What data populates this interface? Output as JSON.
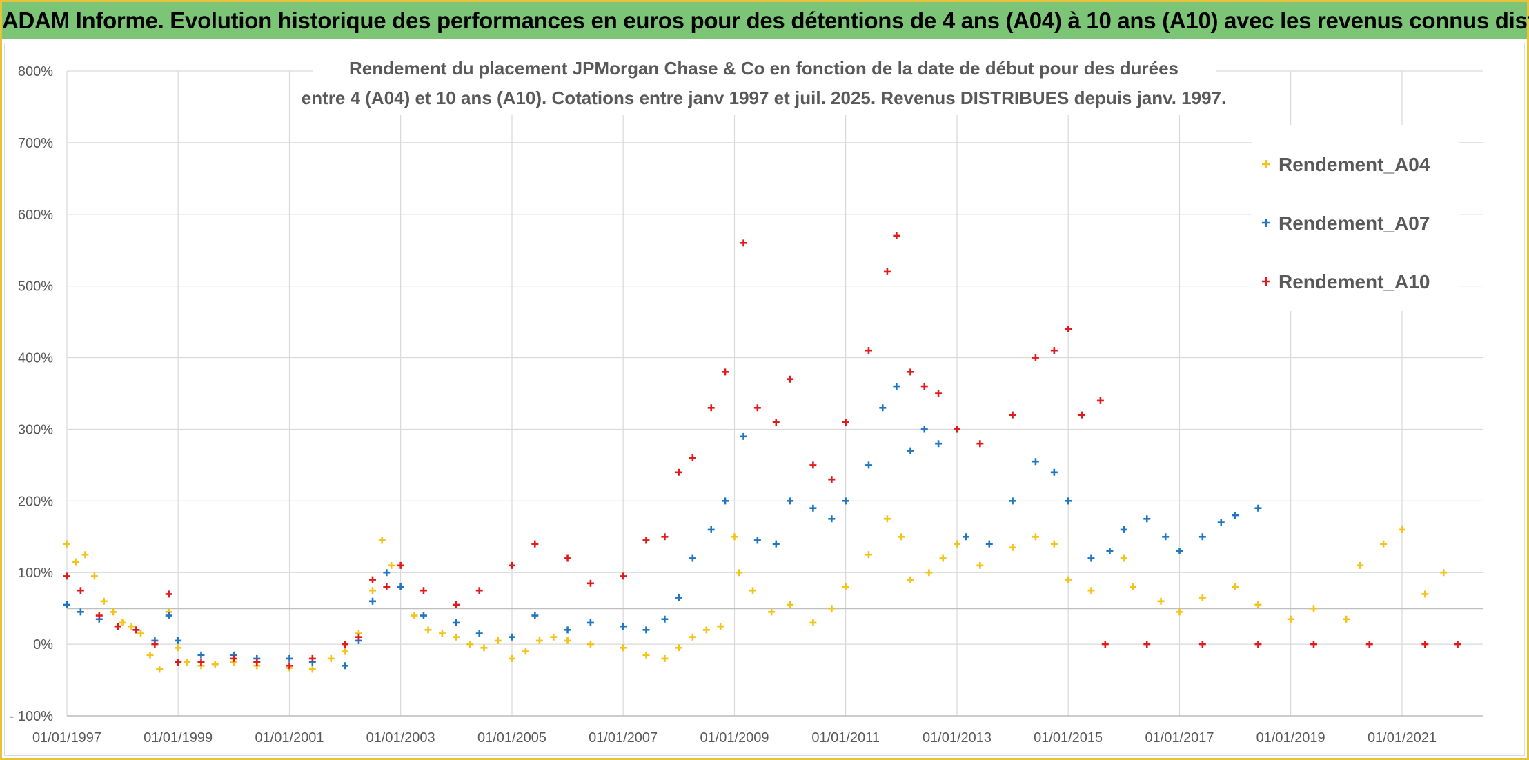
{
  "header": {
    "title": "ADAM Informe. Evolution historique des performances en euros pour des détentions de 4 ans (A04) à 10 ans (A10) avec les revenus connus distribués"
  },
  "chart_data": {
    "type": "scatter",
    "title_line1": "Rendement du placement JPMorgan Chase & Co en fonction de la date de début pour des durées",
    "title_line2": "entre 4 (A04) et 10 ans (A10). Cotations entre janv 1997 et juil. 2025. Revenus DISTRIBUES depuis janv. 1997.",
    "xlabel": "",
    "ylabel": "",
    "xlim": [
      "1997-01-01",
      "2022-06-15"
    ],
    "ylim": [
      -100,
      800
    ],
    "grid": true,
    "legend_position": "top-right",
    "x_tick_labels": [
      "01/01/1997",
      "01/01/1999",
      "01/01/2001",
      "01/01/2003",
      "01/01/2005",
      "01/01/2007",
      "01/01/2009",
      "01/01/2011",
      "01/01/2013",
      "01/01/2015",
      "01/01/2017",
      "01/01/2019",
      "01/01/2021"
    ],
    "y_tick_values": [
      -100,
      0,
      100,
      200,
      300,
      400,
      500,
      600,
      700,
      800
    ],
    "y_tick_labels": [
      "- 100%",
      "0%",
      "100%",
      "200%",
      "300%",
      "400%",
      "500%",
      "600%",
      "700%",
      "800%"
    ],
    "reference_line": 50,
    "series": [
      {
        "name": "Rendement_A04",
        "color": "#f5c218",
        "points": [
          [
            "1997-01-01",
            140
          ],
          [
            "1997-03-01",
            115
          ],
          [
            "1997-05-01",
            125
          ],
          [
            "1997-07-01",
            95
          ],
          [
            "1997-09-01",
            60
          ],
          [
            "1997-11-01",
            45
          ],
          [
            "1998-01-01",
            30
          ],
          [
            "1998-03-01",
            25
          ],
          [
            "1998-05-01",
            15
          ],
          [
            "1998-07-01",
            -15
          ],
          [
            "1998-09-01",
            -35
          ],
          [
            "1998-11-01",
            45
          ],
          [
            "1999-01-01",
            -5
          ],
          [
            "1999-03-01",
            -25
          ],
          [
            "1999-06-01",
            -30
          ],
          [
            "1999-09-01",
            -28
          ],
          [
            "2000-01-01",
            -25
          ],
          [
            "2000-06-01",
            -30
          ],
          [
            "2001-01-01",
            -33
          ],
          [
            "2001-06-01",
            -35
          ],
          [
            "2001-10-01",
            -20
          ],
          [
            "2002-01-01",
            -10
          ],
          [
            "2002-04-01",
            15
          ],
          [
            "2002-07-01",
            75
          ],
          [
            "2002-09-01",
            145
          ],
          [
            "2002-11-01",
            110
          ],
          [
            "2003-01-01",
            80
          ],
          [
            "2003-04-01",
            40
          ],
          [
            "2003-07-01",
            20
          ],
          [
            "2003-10-01",
            15
          ],
          [
            "2004-01-01",
            10
          ],
          [
            "2004-04-01",
            0
          ],
          [
            "2004-07-01",
            -5
          ],
          [
            "2004-10-01",
            5
          ],
          [
            "2005-01-01",
            -20
          ],
          [
            "2005-04-01",
            -10
          ],
          [
            "2005-07-01",
            5
          ],
          [
            "2005-10-01",
            10
          ],
          [
            "2006-01-01",
            5
          ],
          [
            "2006-06-01",
            0
          ],
          [
            "2007-01-01",
            -5
          ],
          [
            "2007-06-01",
            -15
          ],
          [
            "2007-10-01",
            -20
          ],
          [
            "2008-01-01",
            -5
          ],
          [
            "2008-04-01",
            10
          ],
          [
            "2008-07-01",
            20
          ],
          [
            "2008-10-01",
            25
          ],
          [
            "2009-01-01",
            150
          ],
          [
            "2009-02-01",
            100
          ],
          [
            "2009-05-01",
            75
          ],
          [
            "2009-09-01",
            45
          ],
          [
            "2010-01-01",
            55
          ],
          [
            "2010-06-01",
            30
          ],
          [
            "2010-10-01",
            50
          ],
          [
            "2011-01-01",
            80
          ],
          [
            "2011-06-01",
            125
          ],
          [
            "2011-10-01",
            175
          ],
          [
            "2012-01-01",
            150
          ],
          [
            "2012-03-01",
            90
          ],
          [
            "2012-07-01",
            100
          ],
          [
            "2012-10-01",
            120
          ],
          [
            "2013-01-01",
            140
          ],
          [
            "2013-06-01",
            110
          ],
          [
            "2014-01-01",
            135
          ],
          [
            "2014-06-01",
            150
          ],
          [
            "2014-10-01",
            140
          ],
          [
            "2015-01-01",
            90
          ],
          [
            "2015-06-01",
            75
          ],
          [
            "2016-01-01",
            120
          ],
          [
            "2016-03-01",
            80
          ],
          [
            "2016-09-01",
            60
          ],
          [
            "2017-01-01",
            45
          ],
          [
            "2017-06-01",
            65
          ],
          [
            "2018-01-01",
            80
          ],
          [
            "2018-06-01",
            55
          ],
          [
            "2019-01-01",
            35
          ],
          [
            "2019-06-01",
            50
          ],
          [
            "2020-01-01",
            35
          ],
          [
            "2020-04-01",
            110
          ],
          [
            "2020-09-01",
            140
          ],
          [
            "2021-01-01",
            160
          ],
          [
            "2021-06-01",
            70
          ],
          [
            "2021-10-01",
            100
          ]
        ]
      },
      {
        "name": "Rendement_A07",
        "color": "#1f77c4",
        "points": [
          [
            "1997-01-01",
            55
          ],
          [
            "1997-04-01",
            45
          ],
          [
            "1997-08-01",
            35
          ],
          [
            "1997-12-01",
            25
          ],
          [
            "1998-04-01",
            20
          ],
          [
            "1998-08-01",
            5
          ],
          [
            "1998-11-01",
            40
          ],
          [
            "1999-01-01",
            5
          ],
          [
            "1999-06-01",
            -15
          ],
          [
            "2000-01-01",
            -15
          ],
          [
            "2000-06-01",
            -20
          ],
          [
            "2001-01-01",
            -20
          ],
          [
            "2001-06-01",
            -25
          ],
          [
            "2002-01-01",
            -30
          ],
          [
            "2002-04-01",
            5
          ],
          [
            "2002-07-01",
            60
          ],
          [
            "2002-10-01",
            100
          ],
          [
            "2003-01-01",
            80
          ],
          [
            "2003-06-01",
            40
          ],
          [
            "2004-01-01",
            30
          ],
          [
            "2004-06-01",
            15
          ],
          [
            "2005-01-01",
            10
          ],
          [
            "2005-06-01",
            40
          ],
          [
            "2006-01-01",
            20
          ],
          [
            "2006-06-01",
            30
          ],
          [
            "2007-01-01",
            25
          ],
          [
            "2007-06-01",
            20
          ],
          [
            "2007-10-01",
            35
          ],
          [
            "2008-01-01",
            65
          ],
          [
            "2008-04-01",
            120
          ],
          [
            "2008-08-01",
            160
          ],
          [
            "2008-11-01",
            200
          ],
          [
            "2009-03-01",
            290
          ],
          [
            "2009-06-01",
            145
          ],
          [
            "2009-10-01",
            140
          ],
          [
            "2010-01-01",
            200
          ],
          [
            "2010-06-01",
            190
          ],
          [
            "2010-10-01",
            175
          ],
          [
            "2011-01-01",
            200
          ],
          [
            "2011-06-01",
            250
          ],
          [
            "2011-09-01",
            330
          ],
          [
            "2011-12-01",
            360
          ],
          [
            "2012-03-01",
            270
          ],
          [
            "2012-06-01",
            300
          ],
          [
            "2012-09-01",
            280
          ],
          [
            "2013-01-01",
            300
          ],
          [
            "2013-03-01",
            150
          ],
          [
            "2013-08-01",
            140
          ],
          [
            "2014-01-01",
            200
          ],
          [
            "2014-06-01",
            255
          ],
          [
            "2014-10-01",
            240
          ],
          [
            "2015-01-01",
            200
          ],
          [
            "2015-06-01",
            120
          ],
          [
            "2015-10-01",
            130
          ],
          [
            "2016-01-01",
            160
          ],
          [
            "2016-06-01",
            175
          ],
          [
            "2016-10-01",
            150
          ],
          [
            "2017-01-01",
            130
          ],
          [
            "2017-06-01",
            150
          ],
          [
            "2017-10-01",
            170
          ],
          [
            "2018-01-01",
            180
          ],
          [
            "2018-06-01",
            190
          ]
        ]
      },
      {
        "name": "Rendement_A10",
        "color": "#e31a1c",
        "points": [
          [
            "1997-01-01",
            95
          ],
          [
            "1997-04-01",
            75
          ],
          [
            "1997-08-01",
            40
          ],
          [
            "1997-12-01",
            25
          ],
          [
            "1998-04-01",
            20
          ],
          [
            "1998-08-01",
            0
          ],
          [
            "1998-11-01",
            70
          ],
          [
            "1999-01-01",
            -25
          ],
          [
            "1999-06-01",
            -25
          ],
          [
            "2000-01-01",
            -20
          ],
          [
            "2000-06-01",
            -25
          ],
          [
            "2001-01-01",
            -30
          ],
          [
            "2001-06-01",
            -20
          ],
          [
            "2002-01-01",
            0
          ],
          [
            "2002-04-01",
            10
          ],
          [
            "2002-07-01",
            90
          ],
          [
            "2002-10-01",
            80
          ],
          [
            "2003-01-01",
            110
          ],
          [
            "2003-06-01",
            75
          ],
          [
            "2004-01-01",
            55
          ],
          [
            "2004-06-01",
            75
          ],
          [
            "2005-01-01",
            110
          ],
          [
            "2005-06-01",
            140
          ],
          [
            "2006-01-01",
            120
          ],
          [
            "2006-06-01",
            85
          ],
          [
            "2007-01-01",
            95
          ],
          [
            "2007-06-01",
            145
          ],
          [
            "2007-10-01",
            150
          ],
          [
            "2008-01-01",
            240
          ],
          [
            "2008-04-01",
            260
          ],
          [
            "2008-08-01",
            330
          ],
          [
            "2008-11-01",
            380
          ],
          [
            "2009-03-01",
            560
          ],
          [
            "2009-06-01",
            330
          ],
          [
            "2009-10-01",
            310
          ],
          [
            "2010-01-01",
            370
          ],
          [
            "2010-06-01",
            250
          ],
          [
            "2010-10-01",
            230
          ],
          [
            "2011-01-01",
            310
          ],
          [
            "2011-06-01",
            410
          ],
          [
            "2011-10-01",
            520
          ],
          [
            "2011-12-01",
            570
          ],
          [
            "2012-03-01",
            380
          ],
          [
            "2012-06-01",
            360
          ],
          [
            "2012-09-01",
            350
          ],
          [
            "2013-01-01",
            300
          ],
          [
            "2013-06-01",
            280
          ],
          [
            "2014-01-01",
            320
          ],
          [
            "2014-06-01",
            400
          ],
          [
            "2014-10-01",
            410
          ],
          [
            "2015-01-01",
            440
          ],
          [
            "2015-04-01",
            320
          ],
          [
            "2015-08-01",
            340
          ],
          [
            "2015-09-01",
            0
          ],
          [
            "2016-06-01",
            0
          ],
          [
            "2017-06-01",
            0
          ],
          [
            "2018-06-01",
            0
          ],
          [
            "2019-06-01",
            0
          ],
          [
            "2020-06-01",
            0
          ],
          [
            "2021-06-01",
            0
          ],
          [
            "2022-01-01",
            0
          ]
        ]
      }
    ]
  }
}
